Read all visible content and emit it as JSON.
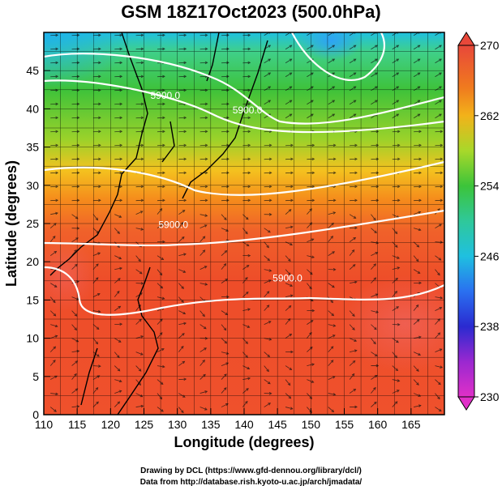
{
  "title": "GSM 18Z17Oct2023 (500.0hPa)",
  "xaxis": {
    "label": "Longitude (degrees)",
    "range": [
      110,
      170
    ],
    "ticks": [
      "110",
      "115",
      "120",
      "125",
      "130",
      "135",
      "140",
      "145",
      "150",
      "155",
      "160",
      "165"
    ]
  },
  "yaxis": {
    "label": "Latitude  (degrees)",
    "range": [
      0,
      50
    ],
    "ticks": [
      "0",
      "5",
      "10",
      "15",
      "20",
      "25",
      "30",
      "35",
      "40",
      "45"
    ]
  },
  "colorbar": {
    "ticks": [
      "270",
      "262",
      "254",
      "246",
      "238",
      "230"
    ],
    "range": [
      230,
      270
    ]
  },
  "contours": [
    {
      "label": "5900.0",
      "lon": 140.5,
      "lat": 39.4
    },
    {
      "label": "5900.0",
      "lon": 128.2,
      "lat": 41.3
    },
    {
      "label": "5900.0",
      "lon": 129.4,
      "lat": 24.4
    },
    {
      "label": "5900.0",
      "lon": 146.5,
      "lat": 17.4
    }
  ],
  "credits": {
    "line1": "Drawing by DCL (https://www.gfd-dennou.org/library/dcl/)",
    "line2": "Data from http://database.rish.kyoto-u.ac.jp/arch/jmadata/"
  },
  "colors": {
    "warm": "#ef4a2a",
    "mid": "#f58a1c",
    "green": "#3cc43a",
    "cyan": "#19c7d9",
    "contour": "#ffffff"
  }
}
